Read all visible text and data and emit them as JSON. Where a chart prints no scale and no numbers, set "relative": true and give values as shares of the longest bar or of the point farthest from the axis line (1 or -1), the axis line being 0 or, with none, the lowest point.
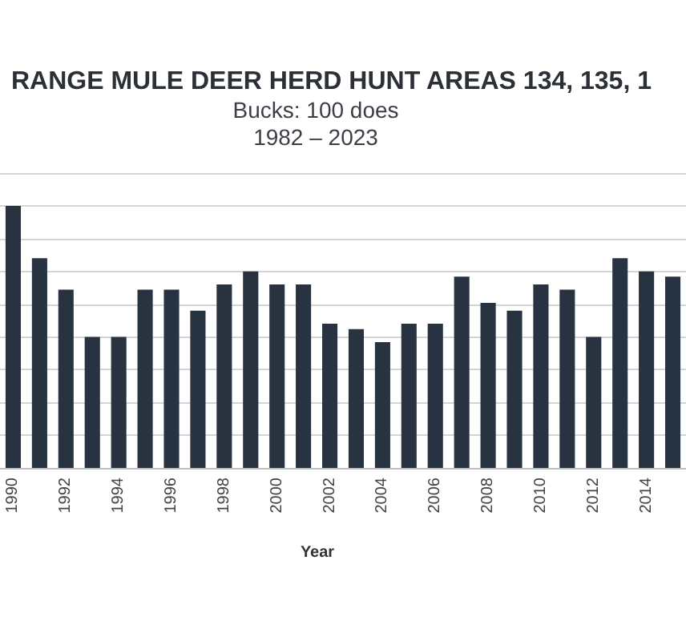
{
  "chart_data": {
    "type": "bar",
    "title": "RANGE MULE DEER HERD HUNT AREAS 134, 135, 1",
    "subtitle": "Bucks: 100 does\n1982 – 2023",
    "xlabel": "Year",
    "categories": [
      "1990",
      null,
      "1992",
      null,
      "1994",
      null,
      "1996",
      null,
      "1998",
      null,
      "2000",
      null,
      "2002",
      null,
      "2004",
      null,
      "2006",
      null,
      "2008",
      null,
      "2010",
      null,
      "2012",
      null,
      "2014",
      null
    ],
    "values": [
      1,
      0.8,
      0.68,
      0.5,
      0.5,
      0.68,
      0.68,
      0.6,
      0.7,
      0.75,
      0.7,
      0.7,
      0.55,
      0.53,
      0.48,
      0.55,
      0.55,
      0.73,
      0.63,
      0.6,
      0.7,
      0.68,
      0.5,
      0.8,
      0.75,
      0.73
    ],
    "color": "#283341",
    "relative": true,
    "grid": "y"
  }
}
